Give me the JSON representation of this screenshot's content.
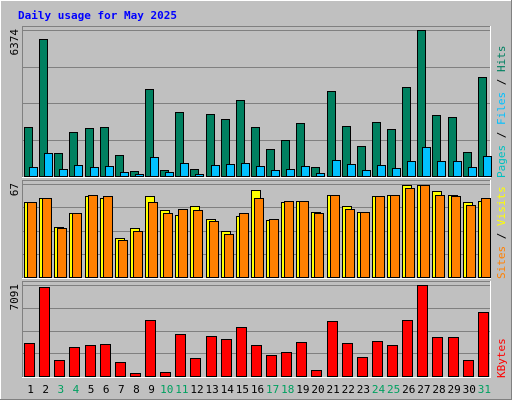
{
  "chart_data": {
    "type": "bar",
    "title": "Daily usage for May 2025",
    "categories": [
      "1",
      "2",
      "3",
      "4",
      "5",
      "6",
      "7",
      "8",
      "9",
      "10",
      "11",
      "12",
      "13",
      "14",
      "15",
      "16",
      "17",
      "18",
      "19",
      "20",
      "21",
      "22",
      "23",
      "24",
      "25",
      "26",
      "27",
      "28",
      "29",
      "30",
      "31"
    ],
    "weekend_days": [
      "3",
      "4",
      "10",
      "11",
      "17",
      "18",
      "24",
      "25",
      "31"
    ],
    "panels": [
      {
        "id": "hits-panel",
        "ymax_label": "6374",
        "ymax": 6374,
        "legend": [
          "Pages",
          "Files",
          "Hits"
        ],
        "series": [
          {
            "name": "Hits",
            "color": "#008060",
            "values": [
              2150,
              6000,
              990,
              1910,
              2100,
              2130,
              920,
              210,
              3780,
              260,
              2810,
              320,
              2720,
              2490,
              3300,
              2150,
              1190,
              1570,
              2300,
              410,
              3700,
              2170,
              1290,
              2350,
              2070,
              3880,
              6374,
              2650,
              2590,
              1060,
              4320
            ]
          },
          {
            "name": "Files",
            "color": "#00c0ff",
            "values": [
              380,
              1000,
              300,
              490,
              380,
              430,
              180,
              70,
              820,
              170,
              560,
              100,
              470,
              520,
              570,
              420,
              260,
              300,
              430,
              120,
              700,
              520,
              280,
              500,
              350,
              650,
              1270,
              640,
              650,
              380,
              880
            ]
          }
        ]
      },
      {
        "id": "visits-panel",
        "ymax_label": "67",
        "ymax": 67,
        "legend": [
          "Sites",
          "Visits"
        ],
        "series": [
          {
            "name": "Visits",
            "color": "#ffff00",
            "values": [
              54,
              57,
              36,
              46,
              58,
              57,
              28,
              35,
              58,
              48,
              45,
              51,
              42,
              33,
              44,
              63,
              41,
              54,
              55,
              47,
              59,
              51,
              47,
              58,
              59,
              66,
              66,
              62,
              59,
              54,
              55
            ]
          },
          {
            "name": "Sites",
            "color": "#ff8000",
            "values": [
              54,
              57,
              35,
              46,
              59,
              58,
              27,
              33,
              54,
              46,
              49,
              48,
              40,
              31,
              46,
              57,
              42,
              55,
              55,
              46,
              59,
              49,
              47,
              58,
              59,
              64,
              66,
              59,
              58,
              52,
              57
            ]
          }
        ]
      },
      {
        "id": "kbytes-panel",
        "ymax_label": "7091",
        "ymax": 7091,
        "legend": [
          "KBytes"
        ],
        "series": [
          {
            "name": "KBytes",
            "color": "#ff0000",
            "values": [
              2540,
              6940,
              1210,
              2230,
              2450,
              2500,
              1100,
              270,
              4360,
              300,
              3310,
              1430,
              3120,
              2910,
              3780,
              2420,
              1640,
              1840,
              2630,
              480,
              4310,
              2580,
              1510,
              2710,
              2380,
              4390,
              7091,
              3040,
              3030,
              1270,
              4990
            ]
          }
        ]
      }
    ]
  },
  "colors": {
    "title": "#0000ff",
    "pages": "#00c0c0",
    "files": "#00c0ff",
    "hits": "#008060",
    "sites": "#ff8000",
    "visits": "#ffff00",
    "kbytes": "#ff0000",
    "weekend_label": "#00a060",
    "weekday_label": "#000000"
  }
}
